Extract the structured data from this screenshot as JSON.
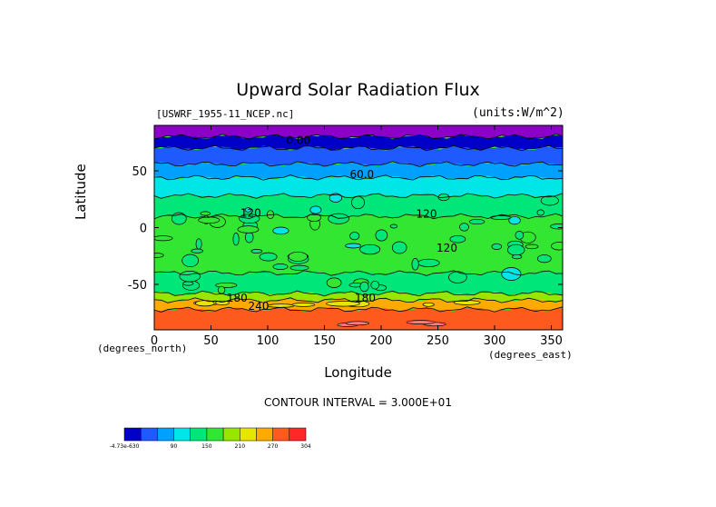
{
  "chart_data": {
    "type": "heatmap",
    "title": "Upward Solar Radiation Flux",
    "subtitle_left": "[USWRF_1955-11_NCEP.nc]",
    "subtitle_right": "(units:W/m^2)",
    "xlabel": "Longitude",
    "ylabel": "Latitude",
    "x_unit": "(degrees_north)",
    "y_unit": "(degrees_east)",
    "xlim": [
      0,
      360
    ],
    "ylim": [
      -90,
      90
    ],
    "x_ticks": [
      "0",
      "50",
      "100",
      "150",
      "200",
      "250",
      "300",
      "350"
    ],
    "x_tick_values": [
      0,
      50,
      100,
      150,
      200,
      250,
      300,
      350
    ],
    "y_ticks": [
      "50",
      "0",
      "-50"
    ],
    "y_tick_values": [
      50,
      0,
      -50
    ],
    "contour_interval_text": "CONTOUR INTERVAL = 3.000E+01",
    "contour_levels": [
      0,
      30,
      60,
      90,
      120,
      150,
      180,
      210,
      240,
      270,
      300
    ],
    "contour_labels": [
      {
        "text": "0.00",
        "lon": 127,
        "lat": 77
      },
      {
        "text": "60.0",
        "lon": 183,
        "lat": 47
      },
      {
        "text": "120",
        "lon": 85,
        "lat": 13
      },
      {
        "text": "120",
        "lon": 240,
        "lat": 12
      },
      {
        "text": "120",
        "lon": 258,
        "lat": -18
      },
      {
        "text": "180",
        "lon": 73,
        "lat": -62
      },
      {
        "text": "180",
        "lon": 186,
        "lat": -62
      },
      {
        "text": "240",
        "lon": 92,
        "lat": -69
      }
    ],
    "latitude_bands": [
      {
        "lat_from": 90,
        "lat_to": 80,
        "value": 0
      },
      {
        "lat_from": 80,
        "lat_to": 70,
        "value": 15
      },
      {
        "lat_from": 70,
        "lat_to": 56,
        "value": 45
      },
      {
        "lat_from": 56,
        "lat_to": 44,
        "value": 75
      },
      {
        "lat_from": 44,
        "lat_to": 28,
        "value": 105
      },
      {
        "lat_from": 28,
        "lat_to": 10,
        "value": 135
      },
      {
        "lat_from": 10,
        "lat_to": -40,
        "value": 150
      },
      {
        "lat_from": -40,
        "lat_to": -58,
        "value": 135
      },
      {
        "lat_from": -58,
        "lat_to": -64,
        "value": 195
      },
      {
        "lat_from": -64,
        "lat_to": -72,
        "value": 255
      },
      {
        "lat_from": -72,
        "lat_to": -90,
        "value": 285
      }
    ],
    "colorbar": {
      "tick_labels": [
        "-4.73e-630",
        "90",
        "150",
        "210",
        "270",
        "304"
      ],
      "colors": [
        "#0000c8",
        "#1e5aff",
        "#00a0ff",
        "#00e6e6",
        "#00e678",
        "#32e632",
        "#96e600",
        "#e6e600",
        "#ffaa00",
        "#ff5a1e",
        "#ff2828"
      ]
    },
    "colors": {
      "polar_cap": "#8c00c8",
      "contour_line": "#000000"
    }
  }
}
